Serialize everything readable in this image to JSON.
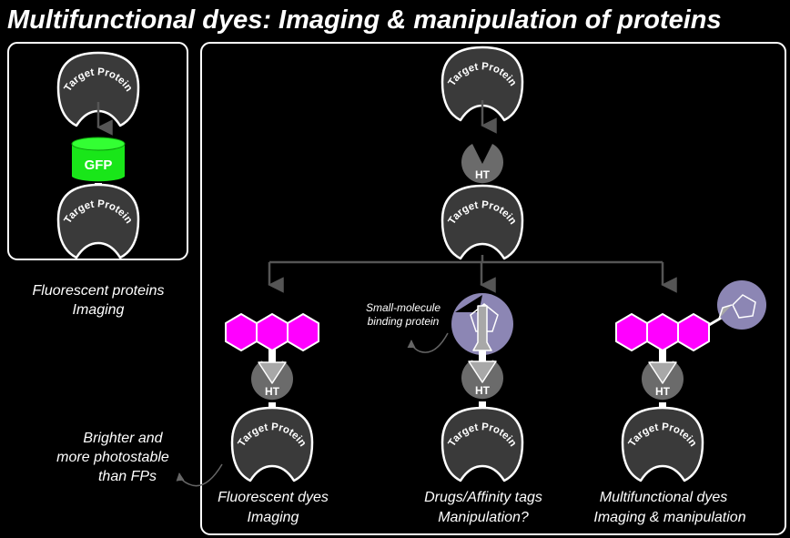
{
  "title": "Multifunctional dyes: Imaging & manipulation of proteins",
  "target_protein_label": "Target Protein",
  "gfp_label": "GFP",
  "ht_label": "HT",
  "left_caption": {
    "line1": "Fluorescent proteins",
    "line2": "Imaging"
  },
  "brighter_note": {
    "line1": "Brighter and",
    "line2": "more photostable",
    "line3": "than FPs"
  },
  "binding_note": {
    "line1": "Small-molecule",
    "line2": "binding protein"
  },
  "branches": [
    {
      "line1": "Fluorescent dyes",
      "line2": "Imaging"
    },
    {
      "line1": "Drugs/Affinity tags",
      "line2": "Manipulation?"
    },
    {
      "line1": "Multifunctional dyes",
      "line2": "Imaging & manipulation"
    }
  ],
  "colors": {
    "background": "#000000",
    "protein_fill": "#3a3a3a",
    "ht_fill": "#6b6b6b",
    "ligand_fill": "#a8a8a8",
    "gfp_green": "#19e619",
    "fluorophore_magenta": "#ff00ff",
    "binding_protein_purple": "#8c86b4",
    "arrow_gray": "#555555"
  }
}
